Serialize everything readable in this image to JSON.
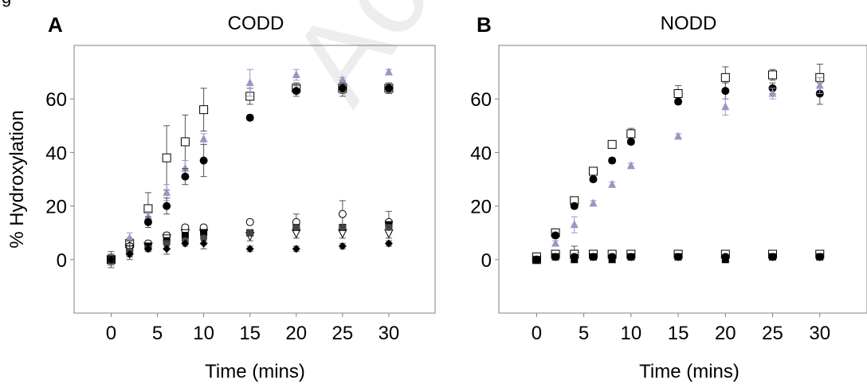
{
  "figure": {
    "partial_header": "g",
    "watermark": "Accepted Manuscript"
  },
  "panels": [
    {
      "label": "A",
      "title": "CODD",
      "xlabel": "Time (mins)",
      "ylabel": "% Hydroxylation"
    },
    {
      "label": "B",
      "title": "NODD",
      "xlabel": "Time (mins)",
      "ylabel": ""
    }
  ],
  "colors": {
    "filled": "#000000",
    "open": "#ffffff",
    "purple": "#9a96c4",
    "error_bar": "#555555",
    "axes": "#808080"
  },
  "chart_data": [
    {
      "type": "scatter",
      "title": "CODD",
      "xlabel": "Time (mins)",
      "ylabel": "% Hydroxylation",
      "xlim": [
        -4,
        35
      ],
      "ylim": [
        -20,
        80
      ],
      "xticks": [
        0,
        5,
        10,
        15,
        20,
        25,
        30
      ],
      "yticks": [
        0,
        20,
        40,
        60
      ],
      "x": [
        0,
        2,
        4,
        6,
        8,
        10,
        15,
        20,
        25,
        30
      ],
      "series": [
        {
          "marker": "open-square",
          "values": [
            0,
            6,
            19,
            38,
            44,
            56,
            61,
            64,
            64,
            64
          ],
          "errors": [
            2,
            2,
            6,
            12,
            10,
            8,
            3,
            2,
            3,
            2
          ]
        },
        {
          "marker": "purple-triangle",
          "values": [
            0,
            8,
            16,
            25,
            34,
            45,
            66,
            69,
            67,
            70
          ],
          "errors": [
            2,
            2,
            2,
            3,
            3,
            2,
            5,
            2,
            1,
            1
          ]
        },
        {
          "marker": "filled-circle",
          "values": [
            0,
            5,
            14,
            20,
            31,
            37,
            53,
            63,
            64,
            64
          ],
          "errors": [
            2,
            2,
            2,
            3,
            3,
            6,
            1,
            2,
            2,
            2
          ]
        },
        {
          "marker": "open-circle",
          "values": [
            0,
            5,
            6,
            9,
            12,
            12,
            14,
            14,
            17,
            14
          ],
          "errors": [
            2,
            2,
            1,
            1,
            1,
            1,
            1,
            3,
            5,
            4
          ]
        },
        {
          "marker": "open-triangle-down",
          "values": [
            0,
            4,
            5,
            8,
            10,
            10,
            9,
            10,
            10,
            10
          ],
          "errors": [
            2,
            2,
            1,
            1,
            1,
            1,
            2,
            2,
            2,
            2
          ]
        },
        {
          "marker": "filled-square",
          "values": [
            0,
            3,
            5,
            7,
            9,
            10,
            10,
            12,
            12,
            13
          ],
          "errors": [
            2,
            2,
            1,
            1,
            1,
            1,
            1,
            1,
            1,
            1
          ]
        },
        {
          "marker": "gray-circle",
          "values": [
            0,
            3,
            4,
            6,
            7,
            8,
            10,
            12,
            12,
            12
          ],
          "errors": [
            2,
            2,
            1,
            1,
            1,
            1,
            1,
            1,
            1,
            1
          ]
        },
        {
          "marker": "filled-diamond",
          "values": [
            0,
            2,
            4,
            4,
            6,
            6,
            4,
            4,
            5,
            6
          ],
          "errors": [
            3,
            2,
            1,
            2,
            1,
            2,
            1,
            1,
            1,
            1
          ]
        }
      ]
    },
    {
      "type": "scatter",
      "title": "NODD",
      "xlabel": "Time (mins)",
      "ylabel": "",
      "xlim": [
        -4,
        35
      ],
      "ylim": [
        -20,
        80
      ],
      "xticks": [
        0,
        5,
        10,
        15,
        20,
        25,
        30
      ],
      "yticks": [
        0,
        20,
        40,
        60
      ],
      "x": [
        0,
        2,
        4,
        6,
        8,
        10,
        15,
        20,
        25,
        30
      ],
      "series": [
        {
          "marker": "open-square",
          "values": [
            0,
            10,
            22,
            33,
            43,
            47,
            62,
            68,
            69,
            68
          ],
          "errors": [
            1,
            1,
            1,
            1,
            1,
            2,
            3,
            4,
            2,
            5
          ]
        },
        {
          "marker": "filled-circle",
          "values": [
            0,
            9,
            20,
            30,
            37,
            44,
            59,
            63,
            64,
            62
          ],
          "errors": [
            1,
            1,
            1,
            1,
            1,
            1,
            1,
            3,
            2,
            4
          ]
        },
        {
          "marker": "purple-triangle",
          "values": [
            0,
            6,
            13,
            21,
            28,
            35,
            46,
            57,
            62,
            65
          ],
          "errors": [
            1,
            1,
            3,
            1,
            1,
            1,
            1,
            3,
            2,
            3
          ]
        },
        {
          "marker": "open-square",
          "values": [
            1,
            2,
            2,
            2,
            2,
            2,
            2,
            2,
            2,
            2
          ],
          "errors": [
            1,
            1,
            3,
            1,
            1,
            1,
            1,
            1,
            1,
            1
          ]
        },
        {
          "marker": "filled-circle",
          "values": [
            0,
            1,
            1,
            1,
            1,
            1,
            1,
            1,
            1,
            1
          ],
          "errors": [
            1,
            1,
            1,
            1,
            1,
            1,
            1,
            1,
            1,
            1
          ]
        },
        {
          "marker": "filled-square",
          "values": [
            0,
            1,
            0,
            1,
            0,
            1,
            1,
            0,
            1,
            1
          ],
          "errors": [
            1,
            1,
            1,
            1,
            1,
            1,
            1,
            1,
            1,
            1
          ]
        }
      ]
    }
  ]
}
